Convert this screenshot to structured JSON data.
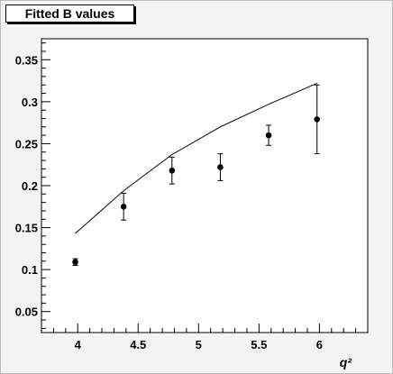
{
  "chart_data": {
    "type": "scatter",
    "title": "Fitted B values",
    "xlabel": "q²",
    "ylabel": "",
    "xlim": [
      3.7,
      6.4
    ],
    "ylim": [
      0.025,
      0.375
    ],
    "grid": false,
    "x_ticks": [
      "4",
      "4.5",
      "5",
      "5.5",
      "6"
    ],
    "y_ticks": [
      "0.05",
      "0.1",
      "0.15",
      "0.2",
      "0.25",
      "0.3",
      "0.35"
    ],
    "series": [
      {
        "type": "scatter_errorbars",
        "points": [
          {
            "x": 3.98,
            "y": 0.109,
            "err": 0.004
          },
          {
            "x": 4.38,
            "y": 0.175,
            "err": 0.016
          },
          {
            "x": 4.78,
            "y": 0.218,
            "err": 0.016
          },
          {
            "x": 5.18,
            "y": 0.222,
            "err": 0.016
          },
          {
            "x": 5.58,
            "y": 0.26,
            "err": 0.012
          },
          {
            "x": 5.98,
            "y": 0.279,
            "err": 0.041
          }
        ]
      },
      {
        "type": "line",
        "x": [
          3.98,
          4.38,
          4.78,
          5.18,
          5.58,
          5.98
        ],
        "y": [
          0.143,
          0.194,
          0.237,
          0.27,
          0.297,
          0.322
        ]
      }
    ]
  }
}
